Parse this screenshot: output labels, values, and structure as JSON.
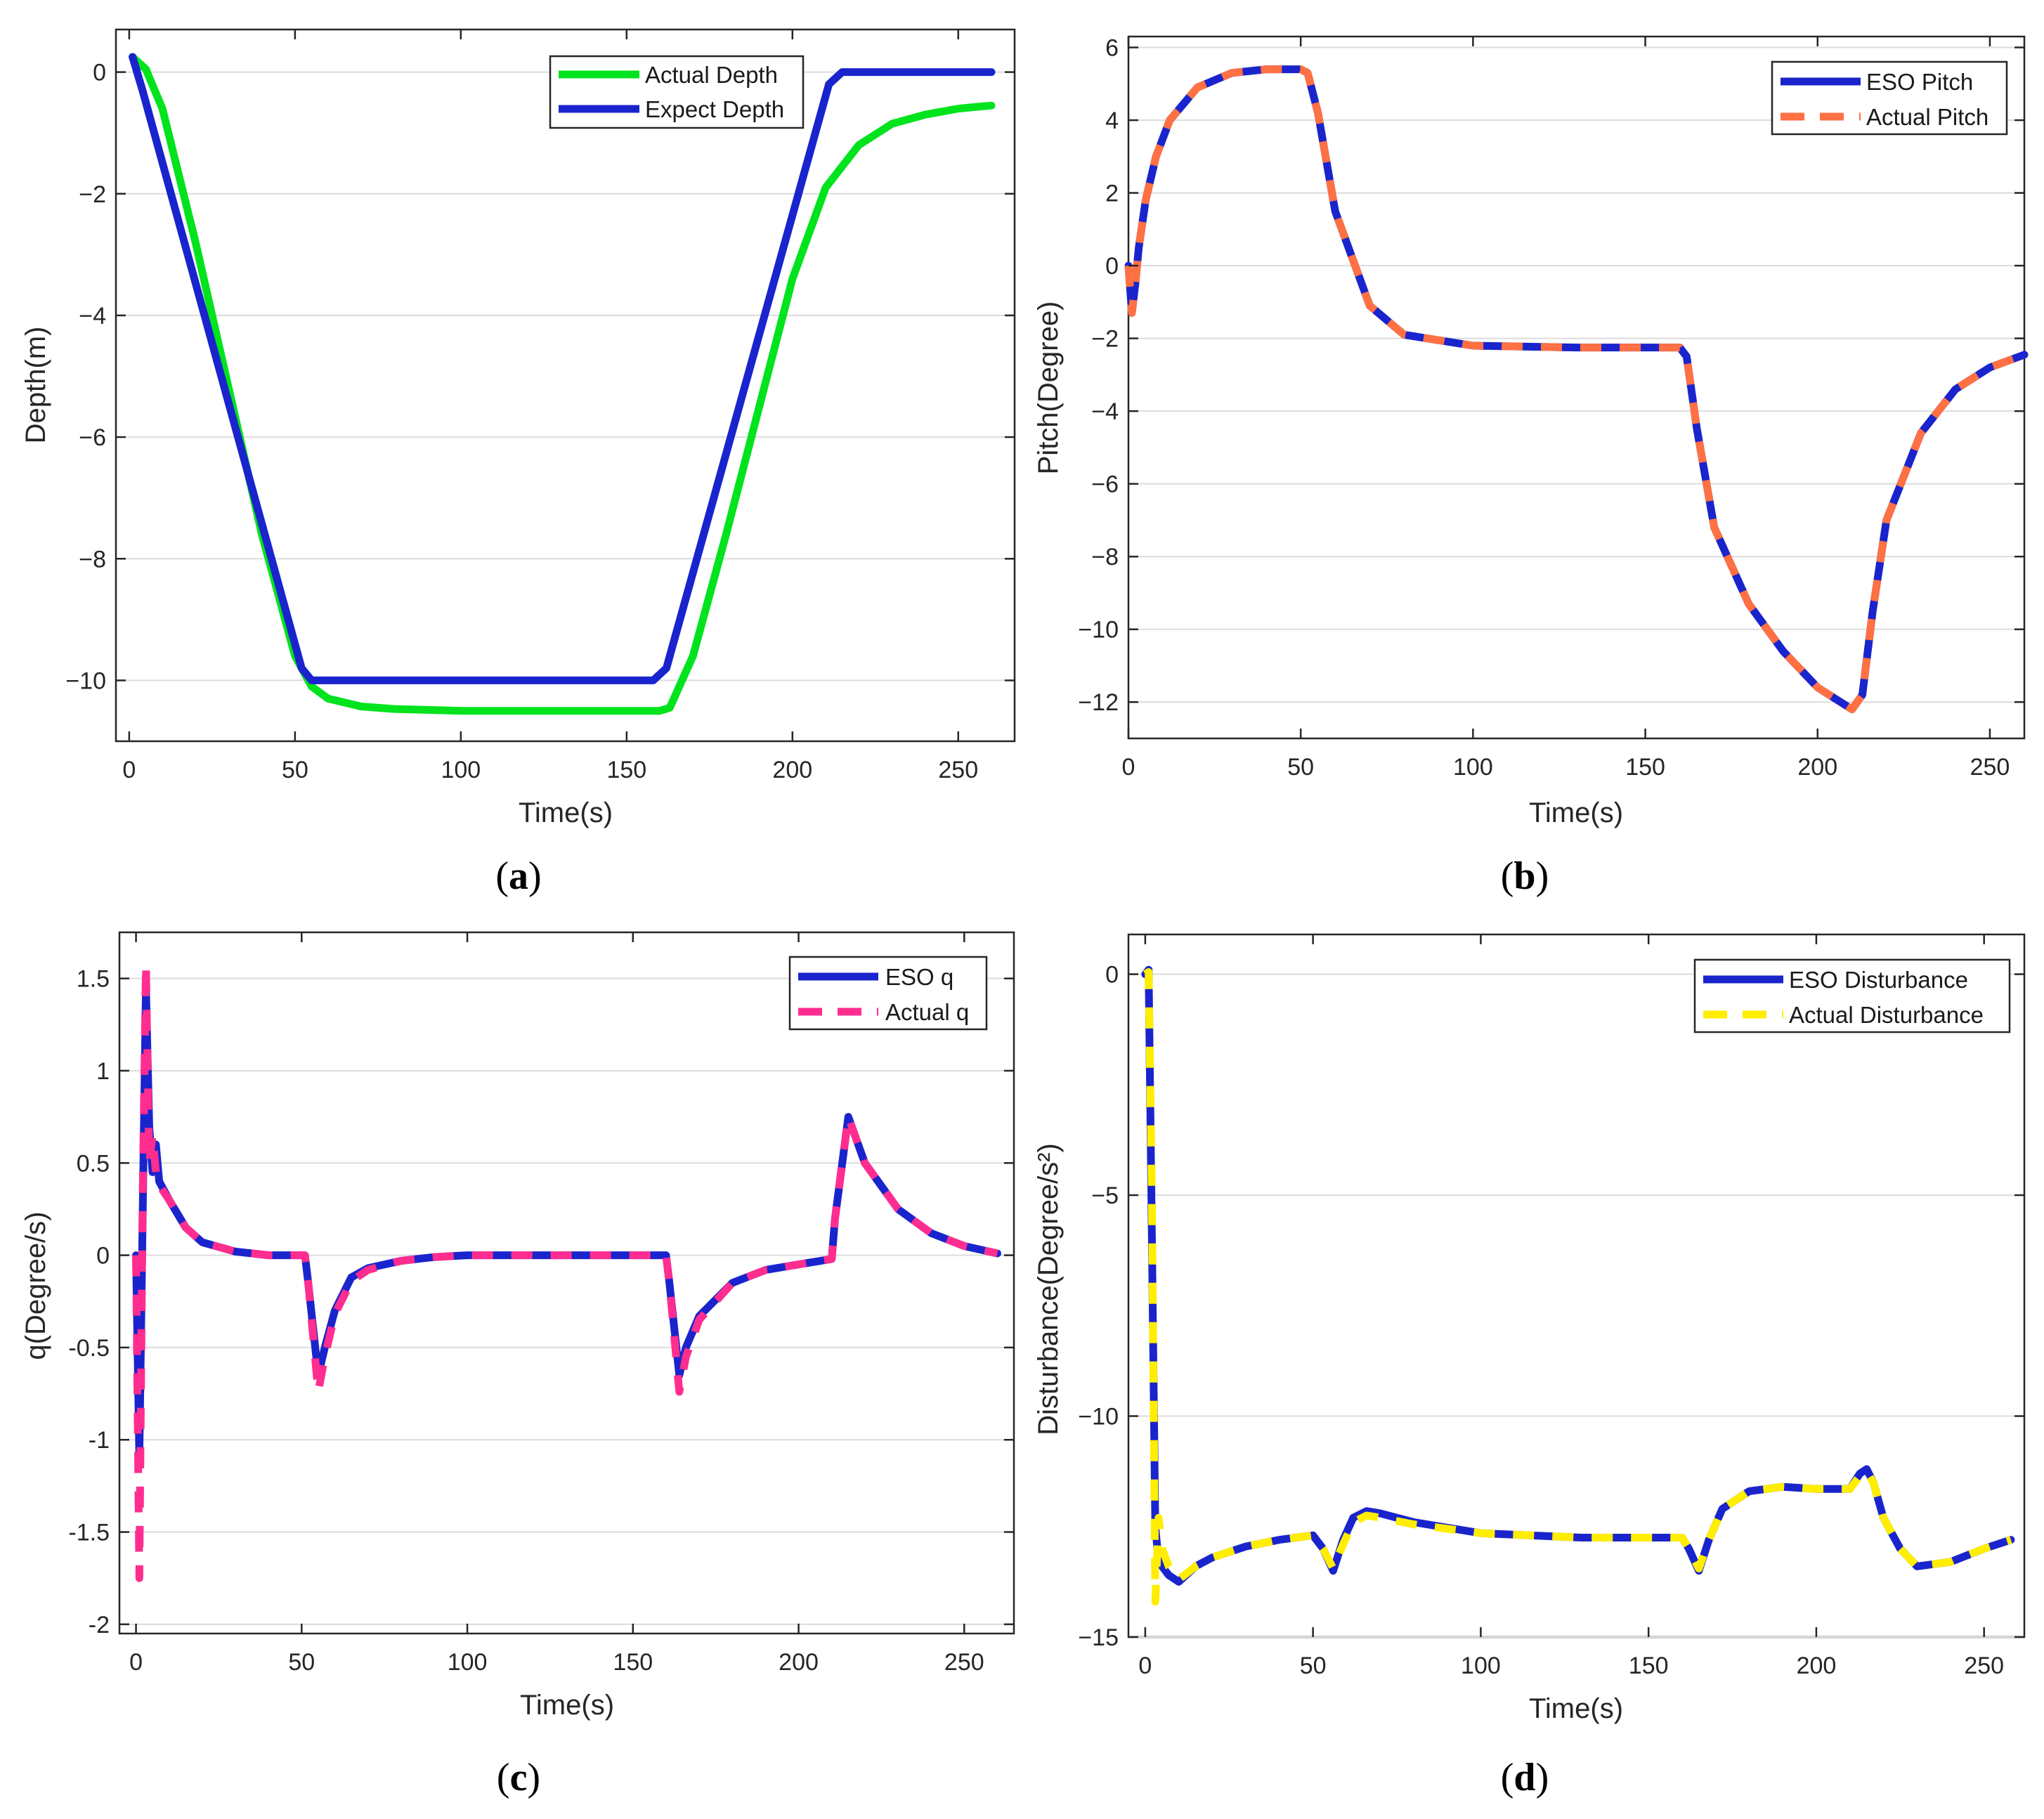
{
  "chart_data": [
    {
      "id": "a",
      "type": "line",
      "caption_letter": "a",
      "xlabel": "Time(s)",
      "ylabel": "Depth(m)",
      "xlim": [
        -4,
        267
      ],
      "ylim": [
        -11,
        0.7
      ],
      "xticks": [
        0,
        50,
        100,
        150,
        200,
        250
      ],
      "yticks": [
        0,
        -2,
        -4,
        -6,
        -8,
        -10
      ],
      "xtick_labels": [
        "0",
        "50",
        "100",
        "150",
        "200",
        "250"
      ],
      "ytick_labels": [
        "0",
        "−2",
        "−4",
        "−6",
        "−8",
        "−10"
      ],
      "grid": true,
      "legend_position": "top-right",
      "series": [
        {
          "name": "Actual Depth",
          "color": "#00e31d",
          "style": "solid",
          "x": [
            1,
            5,
            10,
            20,
            30,
            40,
            50,
            55,
            60,
            70,
            80,
            100,
            130,
            160,
            163,
            170,
            180,
            190,
            200,
            210,
            220,
            230,
            240,
            250,
            260
          ],
          "y": [
            0.25,
            0.05,
            -0.6,
            -2.8,
            -5.2,
            -7.6,
            -9.6,
            -10.1,
            -10.3,
            -10.43,
            -10.47,
            -10.5,
            -10.5,
            -10.5,
            -10.45,
            -9.6,
            -7.6,
            -5.5,
            -3.4,
            -1.9,
            -1.2,
            -0.85,
            -0.7,
            -0.6,
            -0.55
          ]
        },
        {
          "name": "Expect Depth",
          "color": "#1a24cc",
          "style": "solid",
          "x": [
            1,
            4,
            52,
            55,
            158,
            162,
            211,
            215,
            260
          ],
          "y": [
            0.25,
            -0.3,
            -9.8,
            -10,
            -10,
            -9.8,
            -0.2,
            0,
            0
          ]
        }
      ]
    },
    {
      "id": "b",
      "type": "line",
      "caption_letter": "b",
      "xlabel": "Time(s)",
      "ylabel": "Pitch(Degree)",
      "xlim": [
        0,
        260
      ],
      "ylim": [
        -13,
        6.3
      ],
      "xticks": [
        0,
        50,
        100,
        150,
        200,
        250
      ],
      "yticks": [
        6,
        4,
        2,
        0,
        -2,
        -4,
        -6,
        -8,
        -10,
        -12
      ],
      "xtick_labels": [
        "0",
        "50",
        "100",
        "150",
        "200",
        "250"
      ],
      "ytick_labels": [
        "6",
        "4",
        "2",
        "0",
        "−2",
        "−4",
        "−6",
        "−8",
        "−10",
        "−12"
      ],
      "grid": true,
      "legend_position": "top-right",
      "series": [
        {
          "name": "ESO Pitch",
          "color": "#1a24cc",
          "style": "solid",
          "x": [
            0,
            1,
            2,
            3,
            5,
            8,
            12,
            20,
            30,
            40,
            50,
            52,
            55,
            60,
            70,
            80,
            100,
            130,
            160,
            162,
            165,
            170,
            180,
            190,
            200,
            210,
            213,
            216,
            220,
            230,
            240,
            250,
            260
          ],
          "y": [
            0,
            -1.3,
            -0.5,
            0.5,
            1.8,
            3.0,
            4.0,
            4.9,
            5.3,
            5.4,
            5.4,
            5.3,
            4.2,
            1.5,
            -1.1,
            -1.9,
            -2.2,
            -2.25,
            -2.25,
            -2.5,
            -4.5,
            -7.2,
            -9.3,
            -10.6,
            -11.6,
            -12.2,
            -11.8,
            -9.5,
            -7.0,
            -4.6,
            -3.4,
            -2.8,
            -2.45
          ]
        },
        {
          "name": "Actual Pitch",
          "color": "#ff7043",
          "style": "dashed",
          "x": [
            0,
            1,
            2,
            3,
            5,
            8,
            12,
            20,
            30,
            40,
            50,
            52,
            55,
            60,
            70,
            80,
            100,
            130,
            160,
            162,
            165,
            170,
            180,
            190,
            200,
            210,
            213,
            216,
            220,
            230,
            240,
            250,
            260
          ],
          "y": [
            0,
            -1.3,
            -0.5,
            0.5,
            1.8,
            3.0,
            4.0,
            4.9,
            5.3,
            5.4,
            5.4,
            5.3,
            4.2,
            1.5,
            -1.1,
            -1.9,
            -2.2,
            -2.25,
            -2.25,
            -2.5,
            -4.5,
            -7.2,
            -9.3,
            -10.6,
            -11.6,
            -12.2,
            -11.8,
            -9.5,
            -7.0,
            -4.6,
            -3.4,
            -2.8,
            -2.45
          ]
        }
      ]
    },
    {
      "id": "c",
      "type": "line",
      "caption_letter": "c",
      "xlabel": "Time(s)",
      "ylabel": "q(Degree/s)",
      "xlim": [
        -5,
        265
      ],
      "ylim": [
        -2.05,
        1.75
      ],
      "xticks": [
        0,
        50,
        100,
        150,
        200,
        250
      ],
      "yticks": [
        1.5,
        1,
        0.5,
        0,
        -0.5,
        -1,
        -1.5,
        -2
      ],
      "xtick_labels": [
        "0",
        "50",
        "100",
        "150",
        "200",
        "250"
      ],
      "ytick_labels": [
        "1.5",
        "1",
        "0.5",
        "0",
        "-0.5",
        "-1",
        "-1.5",
        "-2"
      ],
      "grid": true,
      "legend_position": "top-right",
      "series": [
        {
          "name": "ESO q",
          "color": "#1a24cc",
          "style": "solid",
          "x": [
            0,
            1,
            2,
            3,
            4,
            5,
            6,
            7,
            10,
            15,
            20,
            30,
            40,
            51,
            52,
            55,
            57,
            60,
            65,
            70,
            80,
            90,
            100,
            130,
            160,
            161,
            164,
            166,
            170,
            180,
            190,
            200,
            210,
            211,
            215,
            220,
            230,
            240,
            250,
            260
          ],
          "y": [
            0,
            -1.1,
            0.2,
            1.45,
            0.7,
            0.45,
            0.6,
            0.4,
            0.3,
            0.15,
            0.07,
            0.02,
            0.0,
            0.0,
            -0.15,
            -0.65,
            -0.5,
            -0.3,
            -0.12,
            -0.07,
            -0.03,
            -0.01,
            0,
            0,
            0,
            -0.15,
            -0.65,
            -0.5,
            -0.33,
            -0.15,
            -0.08,
            -0.05,
            -0.02,
            0.2,
            0.75,
            0.5,
            0.25,
            0.12,
            0.05,
            0.01
          ]
        },
        {
          "name": "Actual q",
          "color": "#ff2d8f",
          "style": "dashed",
          "x": [
            0,
            1,
            2,
            3,
            4,
            5,
            6,
            7,
            10,
            15,
            20,
            30,
            40,
            51,
            52,
            55,
            57,
            60,
            65,
            70,
            80,
            90,
            100,
            130,
            160,
            161,
            164,
            166,
            170,
            180,
            190,
            200,
            210,
            211,
            215,
            220,
            230,
            240,
            250,
            260
          ],
          "y": [
            0,
            -1.75,
            0.3,
            1.58,
            0.5,
            0.65,
            0.45,
            0.38,
            0.3,
            0.15,
            0.07,
            0.02,
            0.0,
            0.0,
            -0.15,
            -0.74,
            -0.55,
            -0.32,
            -0.14,
            -0.08,
            -0.03,
            -0.01,
            0,
            0,
            0,
            -0.15,
            -0.74,
            -0.55,
            -0.35,
            -0.15,
            -0.08,
            -0.05,
            -0.02,
            0.2,
            0.75,
            0.5,
            0.25,
            0.12,
            0.05,
            0.01
          ]
        }
      ]
    },
    {
      "id": "d",
      "type": "line",
      "caption_letter": "d",
      "xlabel": "Time(s)",
      "ylabel": "Disturbance(Degree/s²)",
      "xlim": [
        -5,
        262
      ],
      "ylim": [
        -15,
        0.9
      ],
      "xticks": [
        0,
        50,
        100,
        150,
        200,
        250
      ],
      "yticks": [
        0,
        -5,
        -10,
        -15
      ],
      "xtick_labels": [
        "0",
        "50",
        "100",
        "150",
        "200",
        "250"
      ],
      "ytick_labels": [
        "0",
        "−5",
        "−10",
        "−15"
      ],
      "grid": true,
      "legend_position": "top-right",
      "series": [
        {
          "name": "ESO Disturbance",
          "color": "#1a24cc",
          "style": "solid",
          "x": [
            0,
            1,
            2,
            3,
            4,
            5,
            7,
            10,
            15,
            20,
            30,
            40,
            50,
            53,
            56,
            59,
            62,
            66,
            70,
            80,
            100,
            130,
            160,
            162,
            165,
            168,
            172,
            180,
            190,
            200,
            210,
            213,
            215,
            217,
            220,
            225,
            230,
            240,
            250,
            258
          ],
          "y": [
            0,
            0.1,
            -6,
            -12.5,
            -13.3,
            -13.4,
            -13.6,
            -13.75,
            -13.4,
            -13.2,
            -12.95,
            -12.8,
            -12.7,
            -13.0,
            -13.5,
            -12.8,
            -12.3,
            -12.15,
            -12.2,
            -12.4,
            -12.65,
            -12.75,
            -12.75,
            -13.0,
            -13.5,
            -12.8,
            -12.1,
            -11.7,
            -11.6,
            -11.65,
            -11.65,
            -11.3,
            -11.2,
            -11.5,
            -12.3,
            -13.0,
            -13.4,
            -13.3,
            -13.0,
            -12.8
          ]
        },
        {
          "name": "Actual Disturbance",
          "color": "#ffee00",
          "style": "dashed",
          "x": [
            0,
            1,
            2,
            3,
            4,
            5,
            7,
            10,
            15,
            20,
            30,
            40,
            50,
            53,
            56,
            59,
            62,
            66,
            70,
            80,
            100,
            130,
            160,
            162,
            165,
            168,
            172,
            180,
            190,
            200,
            210,
            213,
            215,
            217,
            220,
            225,
            230,
            240,
            250,
            258
          ],
          "y": [
            0,
            0.05,
            -5,
            -14.2,
            -12.3,
            -13.0,
            -13.4,
            -13.7,
            -13.4,
            -13.2,
            -12.95,
            -12.8,
            -12.7,
            -13.0,
            -13.45,
            -12.9,
            -12.4,
            -12.25,
            -12.3,
            -12.45,
            -12.65,
            -12.75,
            -12.75,
            -13.0,
            -13.45,
            -12.8,
            -12.1,
            -11.7,
            -11.6,
            -11.65,
            -11.65,
            -11.35,
            -11.25,
            -11.5,
            -12.3,
            -13.0,
            -13.4,
            -13.3,
            -13.0,
            -12.8
          ]
        }
      ]
    }
  ]
}
